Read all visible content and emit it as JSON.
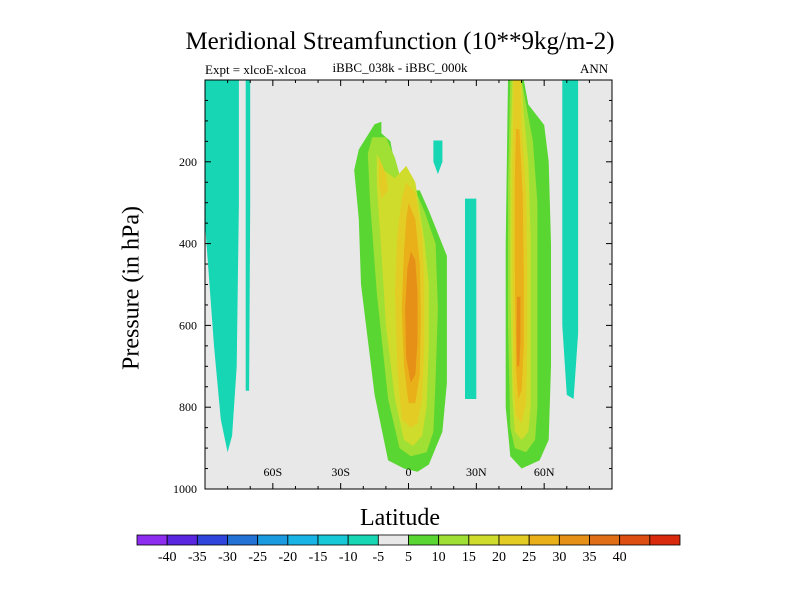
{
  "title": "Meridional Streamfunction (10**9kg/m-2)",
  "left_subtitle": "Expt = xlcoE-xlcoa",
  "center_subtitle": "iBBC_038k - iBBC_000k",
  "right_subtitle": "ANN",
  "colors": {
    "background": "#ffffff",
    "plot_fill": "#e8e8e8",
    "levels": [
      "#8d2df0",
      "#5b26e0",
      "#2f45dc",
      "#2272d6",
      "#1a9be0",
      "#19b4e6",
      "#17c8d6",
      "#16d6b4",
      "#e8e8e8",
      "#5ad632",
      "#a0df34",
      "#cfdc2c",
      "#e3cd25",
      "#e9b019",
      "#e69018",
      "#e06e16",
      "#dd4e12",
      "#d92a0d"
    ]
  },
  "chart_data": {
    "type": "contour",
    "title": "Meridional Streamfunction (10**9kg/m-2)",
    "xlabel": "Latitude",
    "ylabel": "Pressure (in hPa)",
    "xlim": [
      -90,
      90
    ],
    "ylim": [
      1000,
      0
    ],
    "x_ticks": [
      {
        "value": -60,
        "label": "60S"
      },
      {
        "value": -30,
        "label": "30S"
      },
      {
        "value": 0,
        "label": "0"
      },
      {
        "value": 30,
        "label": "30N"
      },
      {
        "value": 60,
        "label": "60N"
      }
    ],
    "y_ticks": [
      {
        "value": 200,
        "label": "200"
      },
      {
        "value": 400,
        "label": "400"
      },
      {
        "value": 600,
        "label": "600"
      },
      {
        "value": 800,
        "label": "800"
      },
      {
        "value": 1000,
        "label": "1000"
      }
    ],
    "colorbar": {
      "labels": [
        "-40",
        "-35",
        "-30",
        "-25",
        "-20",
        "-15",
        "-10",
        "-5",
        "5",
        "10",
        "15",
        "20",
        "25",
        "30",
        "35",
        "40"
      ]
    },
    "regions": [
      {
        "level": -5,
        "points": [
          [
            -90,
            0
          ],
          [
            -75,
            0
          ],
          [
            -75,
            300
          ],
          [
            -76,
            700
          ],
          [
            -78,
            870
          ],
          [
            -80,
            910
          ],
          [
            -83,
            830
          ],
          [
            -86,
            650
          ],
          [
            -88,
            500
          ],
          [
            -90,
            350
          ]
        ]
      },
      {
        "level": -5,
        "points": [
          [
            -72,
            0
          ],
          [
            -70,
            0
          ],
          [
            -70,
            300
          ],
          [
            -70.5,
            760
          ],
          [
            -72,
            760
          ],
          [
            -72,
            300
          ]
        ]
      },
      {
        "level": -10,
        "points": [
          [
            -85,
            0
          ],
          [
            -80,
            0
          ],
          [
            -81,
            200
          ],
          [
            -82,
            350
          ],
          [
            -84,
            250
          ],
          [
            -85,
            100
          ]
        ]
      },
      {
        "level": -5,
        "points": [
          [
            11,
            148
          ],
          [
            15,
            148
          ],
          [
            15,
            200
          ],
          [
            13,
            230
          ],
          [
            11,
            200
          ]
        ]
      },
      {
        "level": -5,
        "points": [
          [
            25,
            290
          ],
          [
            30,
            290
          ],
          [
            30,
            780
          ],
          [
            25,
            780
          ]
        ]
      },
      {
        "level": -5,
        "points": [
          [
            68,
            0
          ],
          [
            75,
            0
          ],
          [
            75,
            620
          ],
          [
            73,
            780
          ],
          [
            70,
            770
          ],
          [
            68,
            600
          ]
        ]
      },
      {
        "level": 5,
        "points": [
          [
            -15,
            108
          ],
          [
            -12,
            102
          ],
          [
            -12,
            130
          ],
          [
            -8,
            150
          ],
          [
            -4,
            270
          ],
          [
            5,
            270
          ],
          [
            9,
            320
          ],
          [
            17,
            430
          ],
          [
            17,
            740
          ],
          [
            15,
            860
          ],
          [
            12,
            900
          ],
          [
            9,
            940
          ],
          [
            4,
            958
          ],
          [
            -2,
            950
          ],
          [
            -9,
            930
          ],
          [
            -15,
            770
          ],
          [
            -21,
            500
          ],
          [
            -22,
            340
          ],
          [
            -24,
            220
          ],
          [
            -22,
            170
          ]
        ]
      },
      {
        "level": 5,
        "points": [
          [
            44,
            0
          ],
          [
            51,
            0
          ],
          [
            53,
            60
          ],
          [
            60,
            110
          ],
          [
            62,
            200
          ],
          [
            63,
            400
          ],
          [
            63,
            700
          ],
          [
            62,
            880
          ],
          [
            58,
            930
          ],
          [
            50,
            950
          ],
          [
            45,
            920
          ],
          [
            43,
            800
          ],
          [
            43,
            400
          ]
        ]
      },
      {
        "level": 10,
        "points": [
          [
            -16,
            140
          ],
          [
            -10,
            140
          ],
          [
            -6,
            190
          ],
          [
            -3,
            250
          ],
          [
            3,
            270
          ],
          [
            7,
            320
          ],
          [
            12,
            400
          ],
          [
            13,
            560
          ],
          [
            12,
            730
          ],
          [
            11,
            860
          ],
          [
            8,
            910
          ],
          [
            1,
            920
          ],
          [
            -4,
            900
          ],
          [
            -9,
            780
          ],
          [
            -14,
            520
          ],
          [
            -17,
            300
          ],
          [
            -18,
            180
          ]
        ]
      },
      {
        "level": 10,
        "points": [
          [
            45,
            0
          ],
          [
            50,
            0
          ],
          [
            52,
            60
          ],
          [
            55,
            150
          ],
          [
            57,
            300
          ],
          [
            57,
            600
          ],
          [
            57,
            800
          ],
          [
            56,
            880
          ],
          [
            52,
            910
          ],
          [
            47,
            900
          ],
          [
            45,
            850
          ],
          [
            44,
            600
          ],
          [
            44,
            250
          ]
        ]
      },
      {
        "level": 15,
        "points": [
          [
            -14,
            180
          ],
          [
            -11,
            220
          ],
          [
            -6,
            240
          ],
          [
            -1,
            210
          ],
          [
            3,
            250
          ],
          [
            5,
            320
          ],
          [
            7,
            390
          ],
          [
            9,
            500
          ],
          [
            9,
            650
          ],
          [
            8,
            800
          ],
          [
            6,
            870
          ],
          [
            2,
            895
          ],
          [
            -2,
            880
          ],
          [
            -6,
            780
          ],
          [
            -10,
            600
          ],
          [
            -12,
            420
          ],
          [
            -14,
            260
          ]
        ]
      },
      {
        "level": 15,
        "points": [
          [
            46,
            0
          ],
          [
            50,
            0
          ],
          [
            51,
            80
          ],
          [
            53,
            200
          ],
          [
            54,
            380
          ],
          [
            54,
            620
          ],
          [
            54,
            800
          ],
          [
            53,
            860
          ],
          [
            50,
            880
          ],
          [
            47,
            860
          ],
          [
            46,
            780
          ],
          [
            45,
            500
          ],
          [
            45,
            200
          ]
        ]
      },
      {
        "level": 20,
        "points": [
          [
            -13,
            190
          ],
          [
            -10,
            230
          ],
          [
            -9,
            270
          ],
          [
            -12,
            290
          ],
          [
            -13,
            250
          ]
        ]
      },
      {
        "level": 20,
        "points": [
          [
            -1,
            250
          ],
          [
            3,
            275
          ],
          [
            6,
            380
          ],
          [
            7,
            500
          ],
          [
            7,
            650
          ],
          [
            6,
            780
          ],
          [
            4,
            840
          ],
          [
            1,
            850
          ],
          [
            -3,
            830
          ],
          [
            -5,
            700
          ],
          [
            -6,
            520
          ],
          [
            -5,
            380
          ],
          [
            -3,
            290
          ]
        ]
      },
      {
        "level": 20,
        "points": [
          [
            46.5,
            0
          ],
          [
            49.5,
            0
          ],
          [
            50,
            120
          ],
          [
            52,
            280
          ],
          [
            52.5,
            450
          ],
          [
            52.5,
            650
          ],
          [
            52,
            790
          ],
          [
            50,
            840
          ],
          [
            47.5,
            820
          ],
          [
            46.5,
            740
          ],
          [
            46,
            500
          ],
          [
            46,
            200
          ]
        ]
      },
      {
        "level": 25,
        "points": [
          [
            0,
            300
          ],
          [
            3,
            340
          ],
          [
            5,
            450
          ],
          [
            5.5,
            580
          ],
          [
            5,
            720
          ],
          [
            3,
            790
          ],
          [
            0,
            790
          ],
          [
            -2,
            700
          ],
          [
            -3,
            560
          ],
          [
            -2,
            420
          ],
          [
            -1,
            340
          ]
        ]
      },
      {
        "level": 25,
        "points": [
          [
            47.5,
            120
          ],
          [
            49,
            120
          ],
          [
            50.5,
            280
          ],
          [
            51,
            480
          ],
          [
            51,
            650
          ],
          [
            50,
            760
          ],
          [
            48.5,
            780
          ],
          [
            47.5,
            700
          ],
          [
            47,
            450
          ],
          [
            47,
            250
          ]
        ]
      },
      {
        "level": 30,
        "points": [
          [
            1,
            420
          ],
          [
            3,
            440
          ],
          [
            4,
            520
          ],
          [
            4,
            640
          ],
          [
            3,
            720
          ],
          [
            1,
            740
          ],
          [
            -1,
            680
          ],
          [
            -1.5,
            560
          ],
          [
            -0.5,
            460
          ]
        ]
      },
      {
        "level": 30,
        "points": [
          [
            48,
            530
          ],
          [
            49.5,
            530
          ],
          [
            49.5,
            640
          ],
          [
            49,
            700
          ],
          [
            48,
            700
          ],
          [
            47.8,
            620
          ]
        ]
      }
    ]
  }
}
